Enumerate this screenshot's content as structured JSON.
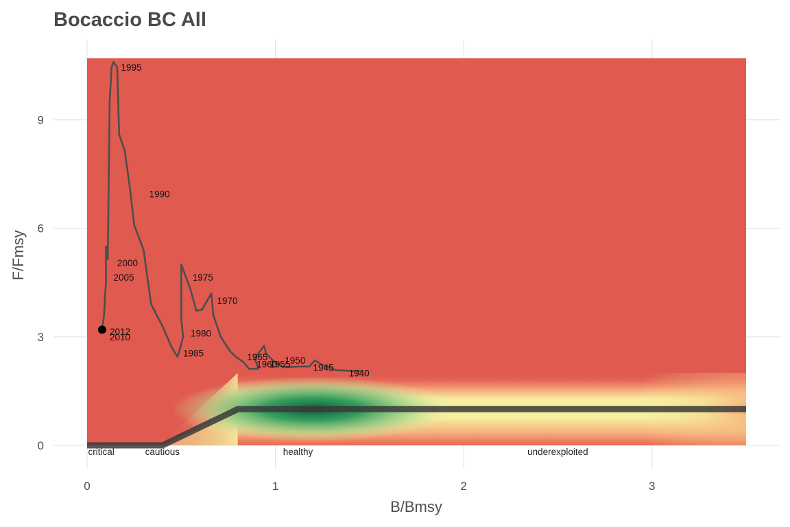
{
  "chart_data": {
    "type": "line",
    "title": "Bocaccio BC All",
    "xlabel": "B/Bmsy",
    "ylabel": "F/Fmsy",
    "xlim": [
      0,
      3.5
    ],
    "ylim": [
      0,
      10.7
    ],
    "x_ticks": [
      "0",
      "1",
      "2",
      "3"
    ],
    "y_ticks": [
      "0",
      "3",
      "6",
      "9"
    ],
    "grid": true,
    "colors": {
      "background": "#e05a50",
      "trajectory": "#4d4d4d",
      "reference": "#3a3a3a",
      "green": "#1f7a4d",
      "yellow": "#f5f0a0"
    },
    "trajectory": [
      {
        "b": 1.46,
        "f": 2.05
      },
      {
        "b": 1.4,
        "f": 2.06
      },
      {
        "b": 1.32,
        "f": 2.08
      },
      {
        "b": 1.25,
        "f": 2.22
      },
      {
        "b": 1.21,
        "f": 2.35
      },
      {
        "b": 1.18,
        "f": 2.18
      },
      {
        "b": 1.12,
        "f": 2.18
      },
      {
        "b": 1.05,
        "f": 2.16
      },
      {
        "b": 1.02,
        "f": 2.22
      },
      {
        "b": 0.98,
        "f": 2.38
      },
      {
        "b": 0.95,
        "f": 2.55
      },
      {
        "b": 0.94,
        "f": 2.75
      },
      {
        "b": 0.91,
        "f": 2.55
      },
      {
        "b": 0.89,
        "f": 2.4
      },
      {
        "b": 0.91,
        "f": 2.12
      },
      {
        "b": 0.86,
        "f": 2.12
      },
      {
        "b": 0.83,
        "f": 2.3
      },
      {
        "b": 0.79,
        "f": 2.45
      },
      {
        "b": 0.76,
        "f": 2.6
      },
      {
        "b": 0.71,
        "f": 3.0
      },
      {
        "b": 0.69,
        "f": 3.3
      },
      {
        "b": 0.67,
        "f": 3.6
      },
      {
        "b": 0.66,
        "f": 4.2
      },
      {
        "b": 0.61,
        "f": 3.75
      },
      {
        "b": 0.58,
        "f": 3.72
      },
      {
        "b": 0.55,
        "f": 4.3
      },
      {
        "b": 0.5,
        "f": 5.0
      },
      {
        "b": 0.5,
        "f": 3.5
      },
      {
        "b": 0.51,
        "f": 3.0
      },
      {
        "b": 0.49,
        "f": 2.6
      },
      {
        "b": 0.48,
        "f": 2.45
      },
      {
        "b": 0.45,
        "f": 2.7
      },
      {
        "b": 0.4,
        "f": 3.3
      },
      {
        "b": 0.34,
        "f": 3.9
      },
      {
        "b": 0.3,
        "f": 5.4
      },
      {
        "b": 0.25,
        "f": 6.1
      },
      {
        "b": 0.23,
        "f": 7.0
      },
      {
        "b": 0.2,
        "f": 8.15
      },
      {
        "b": 0.17,
        "f": 8.6
      },
      {
        "b": 0.16,
        "f": 10.45
      },
      {
        "b": 0.14,
        "f": 10.6
      },
      {
        "b": 0.13,
        "f": 10.45
      },
      {
        "b": 0.12,
        "f": 9.5
      },
      {
        "b": 0.11,
        "f": 5.15
      },
      {
        "b": 0.1,
        "f": 5.5
      },
      {
        "b": 0.1,
        "f": 4.5
      },
      {
        "b": 0.095,
        "f": 4.1
      },
      {
        "b": 0.09,
        "f": 3.6
      },
      {
        "b": 0.08,
        "f": 3.2
      }
    ],
    "current_point": {
      "b": 0.08,
      "f": 3.2
    },
    "year_labels": [
      {
        "text": "1995",
        "b": 0.18,
        "f": 10.45
      },
      {
        "text": "1990",
        "b": 0.33,
        "f": 6.95
      },
      {
        "text": "2000",
        "b": 0.16,
        "f": 5.05
      },
      {
        "text": "2005",
        "b": 0.14,
        "f": 4.65
      },
      {
        "text": "1975",
        "b": 0.56,
        "f": 4.65
      },
      {
        "text": "1970",
        "b": 0.69,
        "f": 4.0
      },
      {
        "text": "1980",
        "b": 0.55,
        "f": 3.1
      },
      {
        "text": "1985",
        "b": 0.51,
        "f": 2.55
      },
      {
        "text": "2012",
        "b": 0.12,
        "f": 3.15
      },
      {
        "text": "2010",
        "b": 0.12,
        "f": 3.0
      },
      {
        "text": "1965",
        "b": 0.85,
        "f": 2.45
      },
      {
        "text": "1960",
        "b": 0.9,
        "f": 2.25
      },
      {
        "text": "1955",
        "b": 0.97,
        "f": 2.25
      },
      {
        "text": "1950",
        "b": 1.05,
        "f": 2.35
      },
      {
        "text": "1945",
        "b": 1.2,
        "f": 2.15
      },
      {
        "text": "1940",
        "b": 1.39,
        "f": 2.0
      }
    ],
    "reference_line": [
      {
        "b": 0,
        "f": 0
      },
      {
        "b": 0.4,
        "f": 0
      },
      {
        "b": 0.8,
        "f": 1
      },
      {
        "b": 3.5,
        "f": 1
      }
    ],
    "zone_labels": [
      {
        "text": "critical",
        "b": 0.075
      },
      {
        "text": "cautious",
        "b": 0.4
      },
      {
        "text": "healthy",
        "b": 1.12
      },
      {
        "text": "underexploited",
        "b": 2.5
      }
    ]
  }
}
